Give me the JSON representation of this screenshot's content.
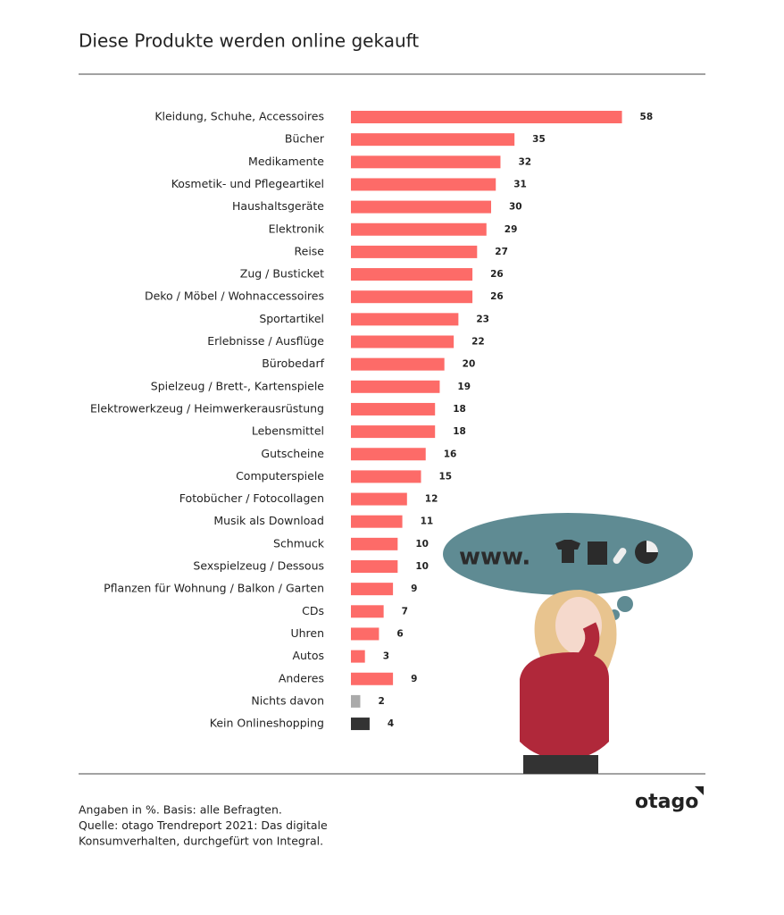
{
  "chart_data": {
    "type": "hbar",
    "title": "Diese Produkte werden online gekauft",
    "categories": [
      "Kleidung, Schuhe, Accessoires",
      "Bücher",
      "Medikamente",
      "Kosmetik- und Pflegeartikel",
      "Haushaltsgeräte",
      "Elektronik",
      "Reise",
      "Zug / Busticket",
      "Deko / Möbel / Wohnaccessoires",
      "Sportartikel",
      "Erlebnisse / Ausflüge",
      "Bürobedarf",
      "Spielzeug / Brett-, Kartenspiele",
      "Elektrowerkzeug / Heimwerkerausrüstung",
      "Lebensmittel",
      "Gutscheine",
      "Computerspiele",
      "Fotobücher / Fotocollagen",
      "Musik als Download",
      "Schmuck",
      "Sexspielzeug / Dessous",
      "Pflanzen für Wohnung / Balkon / Garten",
      "CDs",
      "Uhren",
      "Autos",
      "Anderes",
      "Nichts davon",
      "Kein Onlineshopping"
    ],
    "values": [
      58,
      35,
      32,
      31,
      30,
      29,
      27,
      26,
      26,
      23,
      22,
      20,
      19,
      18,
      18,
      16,
      15,
      12,
      11,
      10,
      10,
      9,
      7,
      6,
      3,
      9,
      2,
      4
    ],
    "colors": [
      "#fd6b68",
      "#fd6b68",
      "#fd6b68",
      "#fd6b68",
      "#fd6b68",
      "#fd6b68",
      "#fd6b68",
      "#fd6b68",
      "#fd6b68",
      "#fd6b68",
      "#fd6b68",
      "#fd6b68",
      "#fd6b68",
      "#fd6b68",
      "#fd6b68",
      "#fd6b68",
      "#fd6b68",
      "#fd6b68",
      "#fd6b68",
      "#fd6b68",
      "#fd6b68",
      "#fd6b68",
      "#fd6b68",
      "#fd6b68",
      "#fd6b68",
      "#fd6b68",
      "#aaaaaa",
      "#333333"
    ],
    "xlim": [
      0,
      60
    ]
  },
  "illustration": {
    "bubble_text": "www."
  },
  "notes": [
    "Angaben in %. Basis: alle Befragten.",
    "Quelle: otago Trendreport 2021: Das digitale",
    "Konsumverhalten, durchgefürt von Integral."
  ],
  "logo": "otago"
}
